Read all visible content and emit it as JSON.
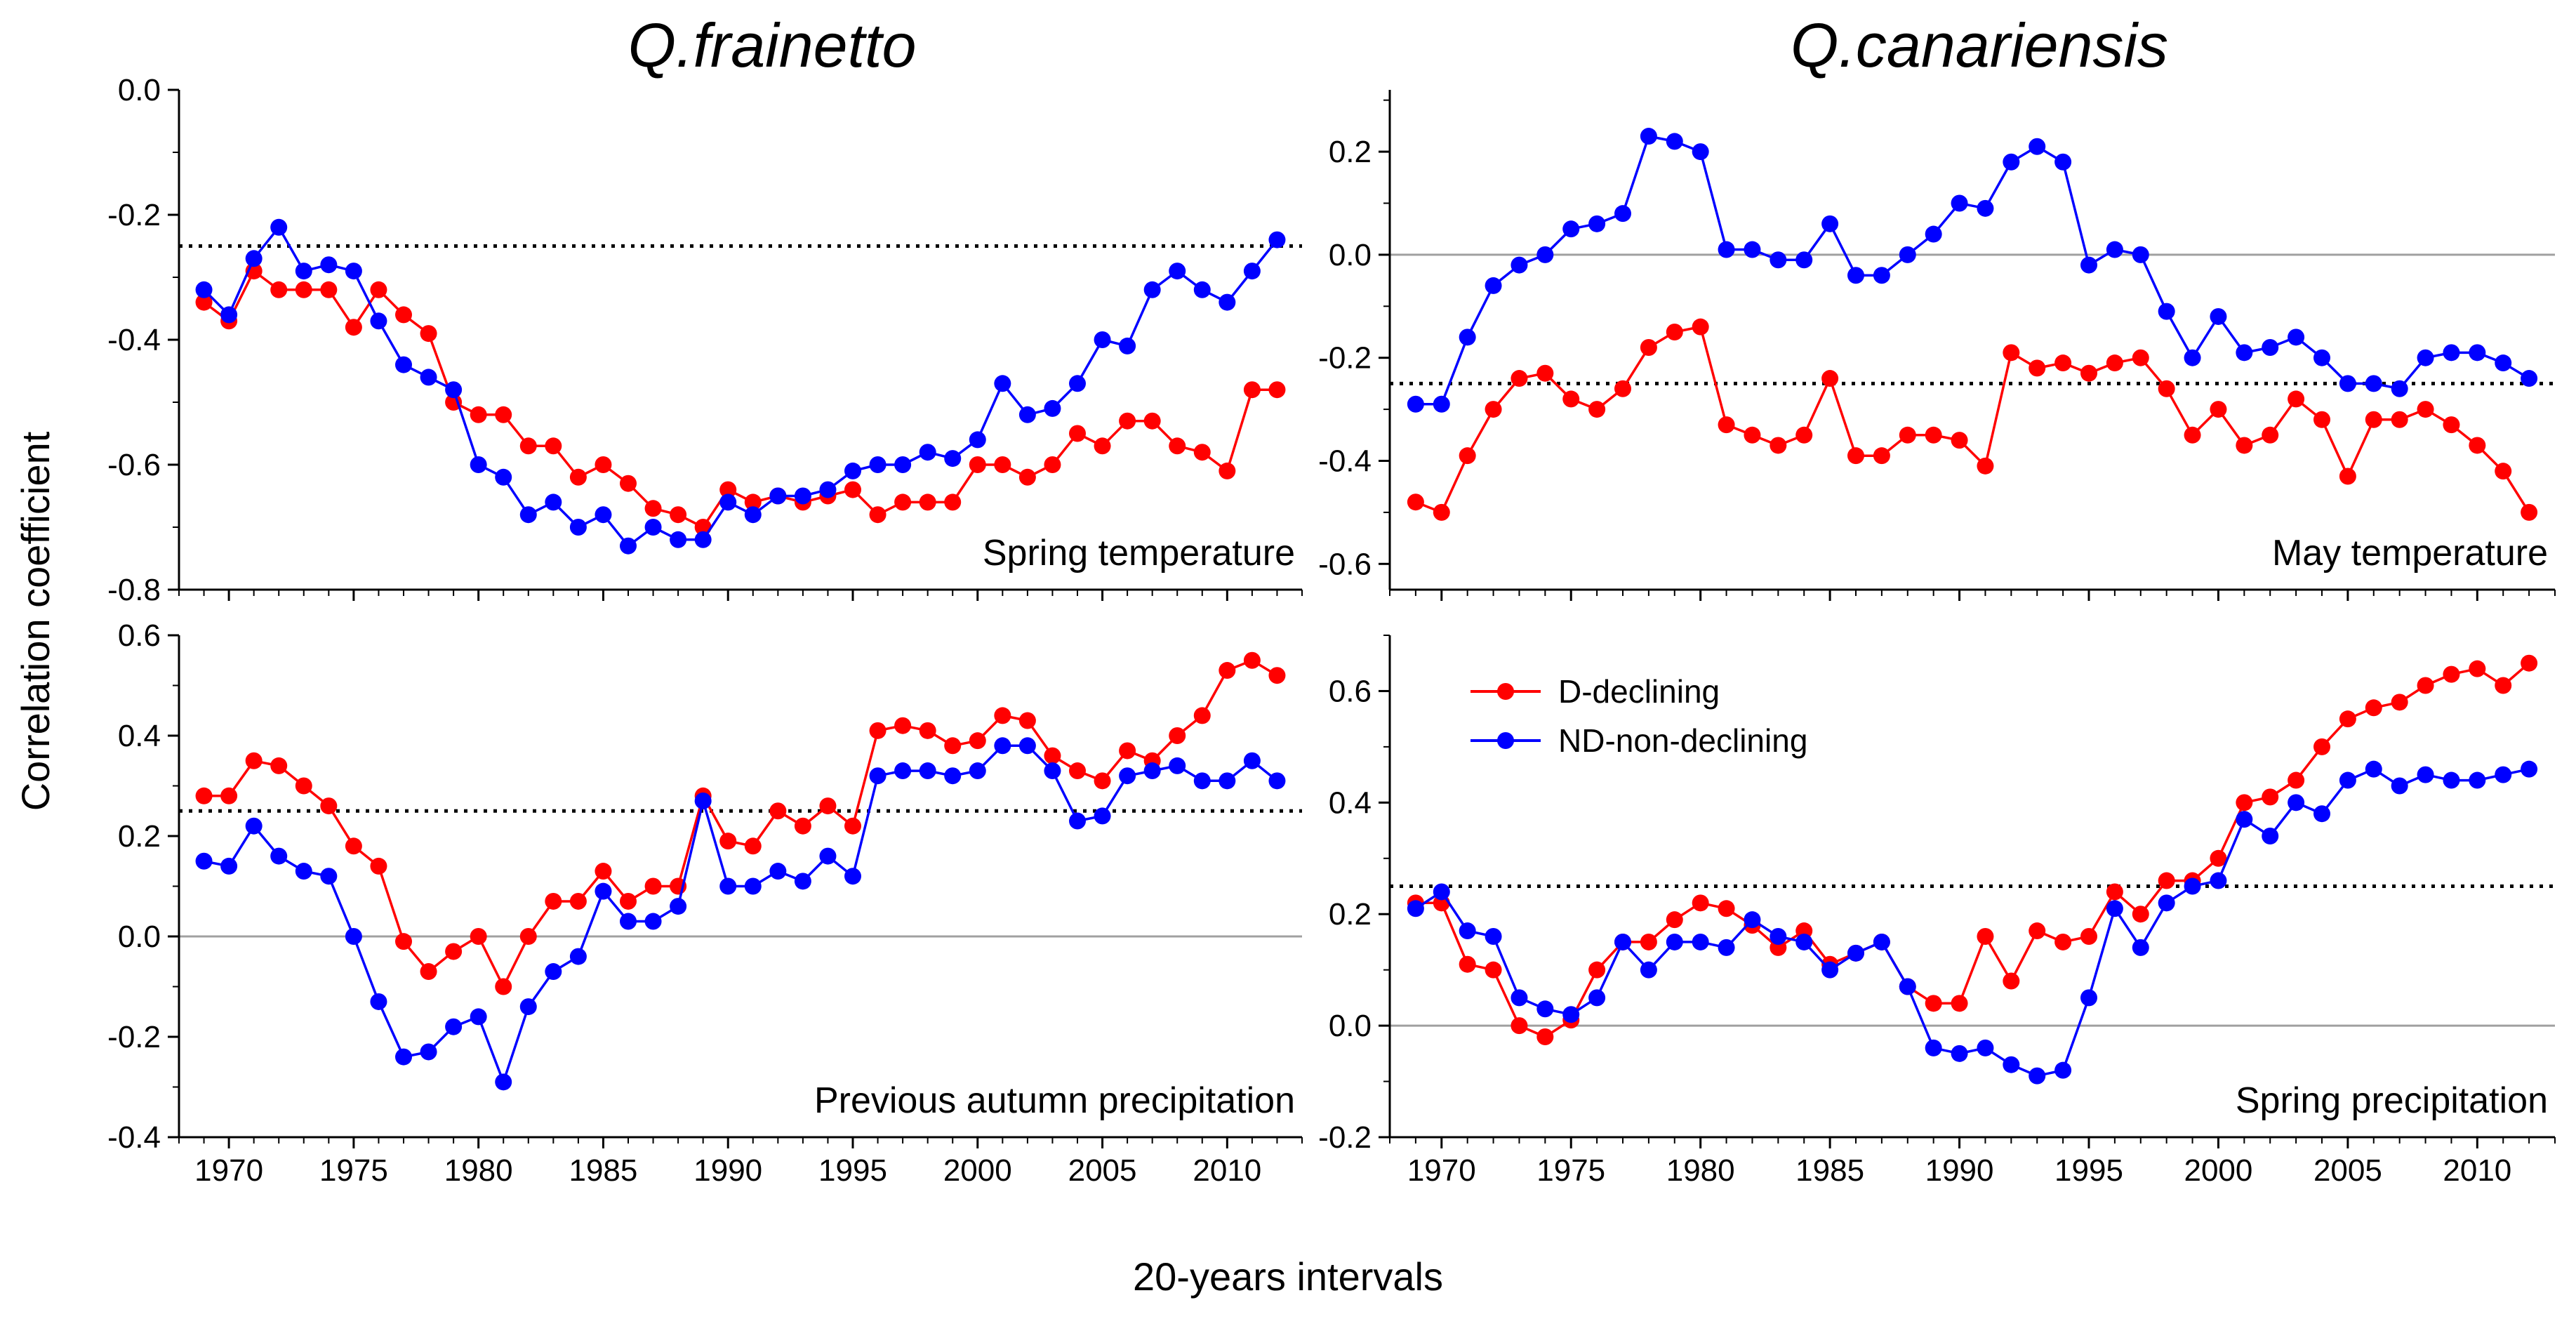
{
  "figure": {
    "y_axis_title": "Correlation coefficient",
    "x_axis_title": "20-years intervals",
    "column_titles": [
      "Q.frainetto",
      "Q.canariensis"
    ]
  },
  "legend": {
    "items": [
      {
        "label": "D-declining",
        "color": "#ff0000"
      },
      {
        "label": "ND-non-declining",
        "color": "#0000ff"
      }
    ]
  },
  "colors": {
    "declining": "#ff0000",
    "non_declining": "#0000ff",
    "threshold_line": "#000000",
    "zero_line": "#a0a0a0"
  },
  "chart_data": [
    {
      "type": "line",
      "panel": "top-left",
      "label": "Spring temperature",
      "x": [
        1969,
        1970,
        1971,
        1972,
        1973,
        1974,
        1975,
        1976,
        1977,
        1978,
        1979,
        1980,
        1981,
        1982,
        1983,
        1984,
        1985,
        1986,
        1987,
        1988,
        1989,
        1990,
        1991,
        1992,
        1993,
        1994,
        1995,
        1996,
        1997,
        1998,
        1999,
        2000,
        2001,
        2002,
        2003,
        2004,
        2005,
        2006,
        2007,
        2008,
        2009,
        2010,
        2011,
        2012
      ],
      "xlim": [
        1968,
        2013
      ],
      "ylim": [
        -0.8,
        0.0
      ],
      "yticks": [
        -0.8,
        -0.6,
        -0.4,
        -0.2,
        0.0
      ],
      "yticklabels": [
        "-0.8",
        "-0.6",
        "-0.4",
        "-0.2",
        "0.0"
      ],
      "xticks": [
        1970,
        1975,
        1980,
        1985,
        1990,
        1995,
        2000,
        2005,
        2010
      ],
      "threshold": -0.25,
      "zero_line": false,
      "series": [
        {
          "name": "D-declining",
          "color": "#ff0000",
          "values": [
            -0.34,
            -0.37,
            -0.29,
            -0.32,
            -0.32,
            -0.32,
            -0.38,
            -0.32,
            -0.36,
            -0.39,
            -0.5,
            -0.52,
            -0.52,
            -0.57,
            -0.57,
            -0.62,
            -0.6,
            -0.63,
            -0.67,
            -0.68,
            -0.7,
            -0.64,
            -0.66,
            -0.65,
            -0.66,
            -0.65,
            -0.64,
            -0.68,
            -0.66,
            -0.66,
            -0.66,
            -0.6,
            -0.6,
            -0.62,
            -0.6,
            -0.55,
            -0.57,
            -0.53,
            -0.53,
            -0.57,
            -0.58,
            -0.61,
            -0.48,
            -0.48
          ]
        },
        {
          "name": "ND-non-declining",
          "color": "#0000ff",
          "values": [
            -0.32,
            -0.36,
            -0.27,
            -0.22,
            -0.29,
            -0.28,
            -0.29,
            -0.37,
            -0.44,
            -0.46,
            -0.48,
            -0.6,
            -0.62,
            -0.68,
            -0.66,
            -0.7,
            -0.68,
            -0.73,
            -0.7,
            -0.72,
            -0.72,
            -0.66,
            -0.68,
            -0.65,
            -0.65,
            -0.64,
            -0.61,
            -0.6,
            -0.6,
            -0.58,
            -0.59,
            -0.56,
            -0.47,
            -0.52,
            -0.51,
            -0.47,
            -0.4,
            -0.41,
            -0.32,
            -0.29,
            -0.32,
            -0.34,
            -0.29,
            -0.24
          ]
        }
      ]
    },
    {
      "type": "line",
      "panel": "top-right",
      "label": "May temperature",
      "x": [
        1969,
        1970,
        1971,
        1972,
        1973,
        1974,
        1975,
        1976,
        1977,
        1978,
        1979,
        1980,
        1981,
        1982,
        1983,
        1984,
        1985,
        1986,
        1987,
        1988,
        1989,
        1990,
        1991,
        1992,
        1993,
        1994,
        1995,
        1996,
        1997,
        1998,
        1999,
        2000,
        2001,
        2002,
        2003,
        2004,
        2005,
        2006,
        2007,
        2008,
        2009,
        2010,
        2011,
        2012
      ],
      "xlim": [
        1968,
        2013
      ],
      "ylim": [
        -0.65,
        0.32
      ],
      "yticks": [
        -0.6,
        -0.4,
        -0.2,
        0.0,
        0.2
      ],
      "yticklabels": [
        "-0.6",
        "-0.4",
        "-0.2",
        "0.0",
        "0.2"
      ],
      "xticks": [
        1970,
        1975,
        1980,
        1985,
        1990,
        1995,
        2000,
        2005,
        2010
      ],
      "threshold": -0.25,
      "zero_line": true,
      "series": [
        {
          "name": "D-declining",
          "color": "#ff0000",
          "values": [
            -0.48,
            -0.5,
            -0.39,
            -0.3,
            -0.24,
            -0.23,
            -0.28,
            -0.3,
            -0.26,
            -0.18,
            -0.15,
            -0.14,
            -0.33,
            -0.35,
            -0.37,
            -0.35,
            -0.24,
            -0.39,
            -0.39,
            -0.35,
            -0.35,
            -0.36,
            -0.41,
            -0.19,
            -0.22,
            -0.21,
            -0.23,
            -0.21,
            -0.2,
            -0.26,
            -0.35,
            -0.3,
            -0.37,
            -0.35,
            -0.28,
            -0.32,
            -0.43,
            -0.32,
            -0.32,
            -0.3,
            -0.33,
            -0.37,
            -0.42,
            -0.5
          ]
        },
        {
          "name": "ND-non-declining",
          "color": "#0000ff",
          "values": [
            -0.29,
            -0.29,
            -0.16,
            -0.06,
            -0.02,
            0.0,
            0.05,
            0.06,
            0.08,
            0.23,
            0.22,
            0.2,
            0.01,
            0.01,
            -0.01,
            -0.01,
            0.06,
            -0.04,
            -0.04,
            0.0,
            0.04,
            0.1,
            0.09,
            0.18,
            0.21,
            0.18,
            -0.02,
            0.01,
            0.0,
            -0.11,
            -0.2,
            -0.12,
            -0.19,
            -0.18,
            -0.16,
            -0.2,
            -0.25,
            -0.25,
            -0.26,
            -0.2,
            -0.19,
            -0.19,
            -0.21,
            -0.24
          ]
        }
      ]
    },
    {
      "type": "line",
      "panel": "bottom-left",
      "label": "Previous autumn precipitation",
      "x": [
        1969,
        1970,
        1971,
        1972,
        1973,
        1974,
        1975,
        1976,
        1977,
        1978,
        1979,
        1980,
        1981,
        1982,
        1983,
        1984,
        1985,
        1986,
        1987,
        1988,
        1989,
        1990,
        1991,
        1992,
        1993,
        1994,
        1995,
        1996,
        1997,
        1998,
        1999,
        2000,
        2001,
        2002,
        2003,
        2004,
        2005,
        2006,
        2007,
        2008,
        2009,
        2010,
        2011,
        2012
      ],
      "xlim": [
        1968,
        2013
      ],
      "ylim": [
        -0.4,
        0.6
      ],
      "yticks": [
        -0.4,
        -0.2,
        0.0,
        0.2,
        0.4,
        0.6
      ],
      "yticklabels": [
        "-0.4",
        "-0.2",
        "0.0",
        "0.2",
        "0.4",
        "0.6"
      ],
      "xticks": [
        1970,
        1975,
        1980,
        1985,
        1990,
        1995,
        2000,
        2005,
        2010
      ],
      "xticklabels": [
        "1970",
        "1975",
        "1980",
        "1985",
        "1990",
        "1995",
        "2000",
        "2005",
        "2010"
      ],
      "threshold": 0.25,
      "zero_line": true,
      "series": [
        {
          "name": "D-declining",
          "color": "#ff0000",
          "values": [
            0.28,
            0.28,
            0.35,
            0.34,
            0.3,
            0.26,
            0.18,
            0.14,
            -0.01,
            -0.07,
            -0.03,
            0.0,
            -0.1,
            0.0,
            0.07,
            0.07,
            0.13,
            0.07,
            0.1,
            0.1,
            0.28,
            0.19,
            0.18,
            0.25,
            0.22,
            0.26,
            0.22,
            0.41,
            0.42,
            0.41,
            0.38,
            0.39,
            0.44,
            0.43,
            0.36,
            0.33,
            0.31,
            0.37,
            0.35,
            0.4,
            0.44,
            0.53,
            0.55,
            0.52
          ]
        },
        {
          "name": "ND-non-declining",
          "color": "#0000ff",
          "values": [
            0.15,
            0.14,
            0.22,
            0.16,
            0.13,
            0.12,
            0.0,
            -0.13,
            -0.24,
            -0.23,
            -0.18,
            -0.16,
            -0.29,
            -0.14,
            -0.07,
            -0.04,
            0.09,
            0.03,
            0.03,
            0.06,
            0.27,
            0.1,
            0.1,
            0.13,
            0.11,
            0.16,
            0.12,
            0.32,
            0.33,
            0.33,
            0.32,
            0.33,
            0.38,
            0.38,
            0.33,
            0.23,
            0.24,
            0.32,
            0.33,
            0.34,
            0.31,
            0.31,
            0.35,
            0.31
          ]
        }
      ]
    },
    {
      "type": "line",
      "panel": "bottom-right",
      "label": "Spring precipitation",
      "x": [
        1969,
        1970,
        1971,
        1972,
        1973,
        1974,
        1975,
        1976,
        1977,
        1978,
        1979,
        1980,
        1981,
        1982,
        1983,
        1984,
        1985,
        1986,
        1987,
        1988,
        1989,
        1990,
        1991,
        1992,
        1993,
        1994,
        1995,
        1996,
        1997,
        1998,
        1999,
        2000,
        2001,
        2002,
        2003,
        2004,
        2005,
        2006,
        2007,
        2008,
        2009,
        2010,
        2011,
        2012
      ],
      "xlim": [
        1968,
        2013
      ],
      "ylim": [
        -0.2,
        0.7
      ],
      "yticks": [
        -0.2,
        0.0,
        0.2,
        0.4,
        0.6
      ],
      "yticklabels": [
        "-0.2",
        "0.0",
        "0.2",
        "0.4",
        "0.6"
      ],
      "xticks": [
        1970,
        1975,
        1980,
        1985,
        1990,
        1995,
        2000,
        2005,
        2010
      ],
      "xticklabels": [
        "1970",
        "1975",
        "1980",
        "1985",
        "1990",
        "1995",
        "2000",
        "2005",
        "2010"
      ],
      "threshold": 0.25,
      "zero_line": true,
      "series": [
        {
          "name": "D-declining",
          "color": "#ff0000",
          "values": [
            0.22,
            0.22,
            0.11,
            0.1,
            0.0,
            -0.02,
            0.01,
            0.1,
            0.15,
            0.15,
            0.19,
            0.22,
            0.21,
            0.18,
            0.14,
            0.17,
            0.11,
            0.13,
            0.15,
            0.07,
            0.04,
            0.04,
            0.16,
            0.08,
            0.17,
            0.15,
            0.16,
            0.24,
            0.2,
            0.26,
            0.26,
            0.3,
            0.4,
            0.41,
            0.44,
            0.5,
            0.55,
            0.57,
            0.58,
            0.61,
            0.63,
            0.64,
            0.61,
            0.65
          ]
        },
        {
          "name": "ND-non-declining",
          "color": "#0000ff",
          "values": [
            0.21,
            0.24,
            0.17,
            0.16,
            0.05,
            0.03,
            0.02,
            0.05,
            0.15,
            0.1,
            0.15,
            0.15,
            0.14,
            0.19,
            0.16,
            0.15,
            0.1,
            0.13,
            0.15,
            0.07,
            -0.04,
            -0.05,
            -0.04,
            -0.07,
            -0.09,
            -0.08,
            0.05,
            0.21,
            0.14,
            0.22,
            0.25,
            0.26,
            0.37,
            0.34,
            0.4,
            0.38,
            0.44,
            0.46,
            0.43,
            0.45,
            0.44,
            0.44,
            0.45,
            0.46
          ]
        }
      ]
    }
  ]
}
